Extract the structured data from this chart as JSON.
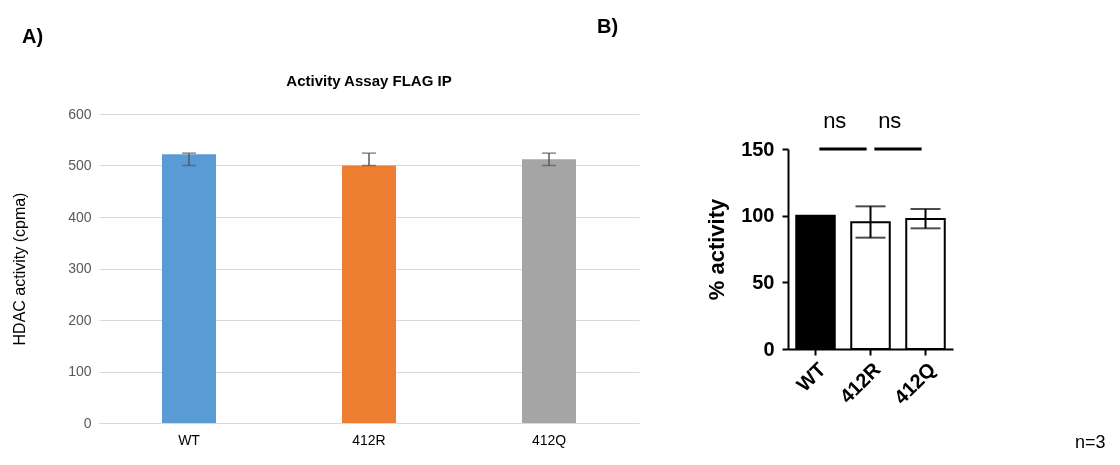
{
  "chart_data": [
    {
      "type": "bar",
      "title": "Activity Assay FLAG IP",
      "ylabel": "HDAC activity (cpma)",
      "categories": [
        "WT",
        "412R",
        "412Q"
      ],
      "values": [
        522,
        500,
        512
      ],
      "colors": [
        "#5b9bd5",
        "#ed7d31",
        "#a5a5a5"
      ],
      "errors": [
        [
          500,
          524
        ],
        [
          500,
          524
        ],
        [
          500,
          524
        ]
      ],
      "ylim": [
        0,
        600
      ],
      "yticks": [
        0,
        100,
        200,
        300,
        400,
        500,
        600
      ],
      "grid": "y",
      "annotations": [
        "A)"
      ]
    },
    {
      "type": "bar",
      "ylabel": "% activity",
      "categories": [
        "WT",
        "412R",
        "412Q"
      ],
      "values": [
        100,
        95,
        97.5
      ],
      "colors": [
        "#000000",
        "#ffffff",
        "#ffffff"
      ],
      "errors": [
        null,
        [
          83.5,
          107
        ],
        [
          90.5,
          105
        ]
      ],
      "ylim": [
        0,
        150
      ],
      "yticks": [
        0,
        50,
        100,
        150
      ],
      "grid": false,
      "annotations": [
        "B)",
        "n=3",
        "ns",
        "ns"
      ]
    }
  ]
}
